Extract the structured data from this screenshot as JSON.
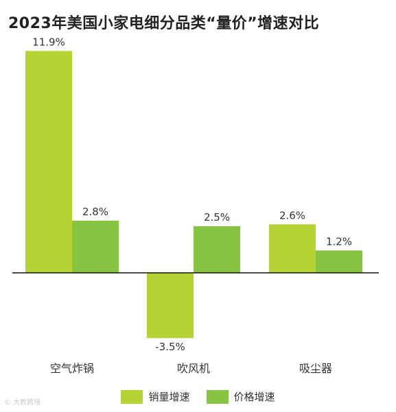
{
  "chart_data": {
    "type": "bar",
    "title": "2023年美国小家电细分品类“量价”增速对比",
    "categories": [
      "空气炸锅",
      "吹风机",
      "吸尘器"
    ],
    "series": [
      {
        "name": "销量增速",
        "values": [
          11.9,
          -3.5,
          2.6
        ],
        "labels": [
          "11.9%",
          "-3.5%",
          "2.6%"
        ],
        "color": "#b5d334"
      },
      {
        "name": "价格增速",
        "values": [
          2.8,
          2.5,
          1.2
        ],
        "labels": [
          "2.8%",
          "2.5%",
          "1.2%"
        ],
        "color": "#86c441"
      }
    ],
    "ylim": [
      -3.5,
      11.9
    ],
    "grid": false,
    "legend_position": "bottom-center"
  },
  "watermark": "© 大数跨境"
}
